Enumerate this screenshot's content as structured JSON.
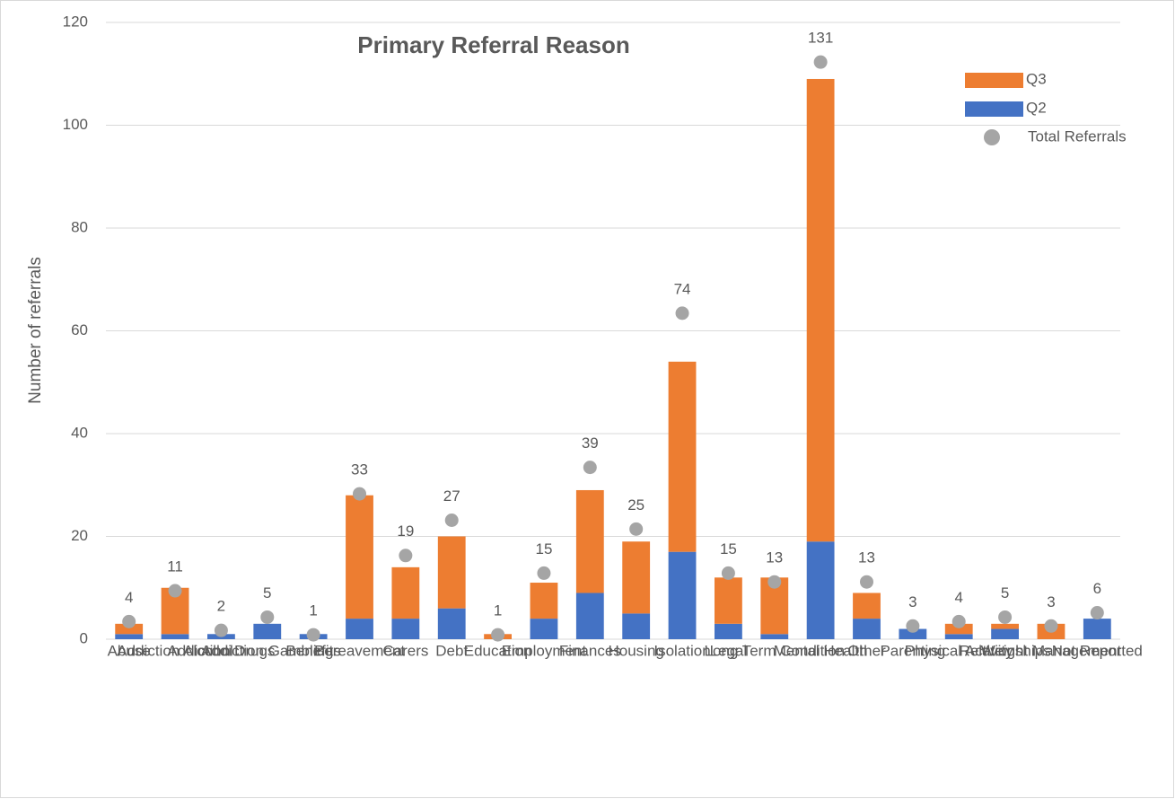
{
  "chart_data": {
    "type": "stacked_bar",
    "title": "Primary Referral Reason",
    "y_label": "Number of referrals",
    "categories": [
      "Abuse",
      "Addiction Alcohol",
      "Addiction Drugs",
      "Addiction Gambling",
      "Benefits",
      "Bereavement",
      "Carers",
      "Debt",
      "Education",
      "Employment",
      "Finances",
      "Housing",
      "Isolation",
      "Legal",
      "Long Term Condition",
      "Mental Health",
      "Other",
      "Parenting",
      "Physical Activity",
      "Relationships",
      "Weight Management",
      "Not Reported"
    ],
    "series": [
      {
        "name": "Q2",
        "color": "#4472c4",
        "type": "bar",
        "values": [
          1,
          1,
          1,
          3,
          1,
          4,
          4,
          6,
          0,
          4,
          9,
          5,
          17,
          3,
          1,
          19,
          4,
          2,
          1,
          2,
          0,
          4
        ]
      },
      {
        "name": "Q3",
        "color": "#ed7d31",
        "type": "bar",
        "values": [
          2,
          9,
          0,
          0,
          0,
          24,
          10,
          14,
          1,
          7,
          20,
          14,
          37,
          9,
          11,
          90,
          5,
          0,
          2,
          1,
          3,
          0
        ]
      },
      {
        "name": "Total Referrals",
        "color": "#a5a5a5",
        "type": "scatter",
        "axis": "y2",
        "values": [
          4,
          11,
          2,
          5,
          1,
          33,
          19,
          27,
          1,
          15,
          39,
          25,
          74,
          15,
          13,
          131,
          13,
          3,
          4,
          5,
          3,
          6
        ]
      }
    ],
    "ylim": [
      0,
      120
    ],
    "yticks": [
      0,
      20,
      40,
      60,
      80,
      100,
      120
    ],
    "y2lim": [
      0,
      140
    ],
    "grid": true,
    "legend": "upper right"
  }
}
